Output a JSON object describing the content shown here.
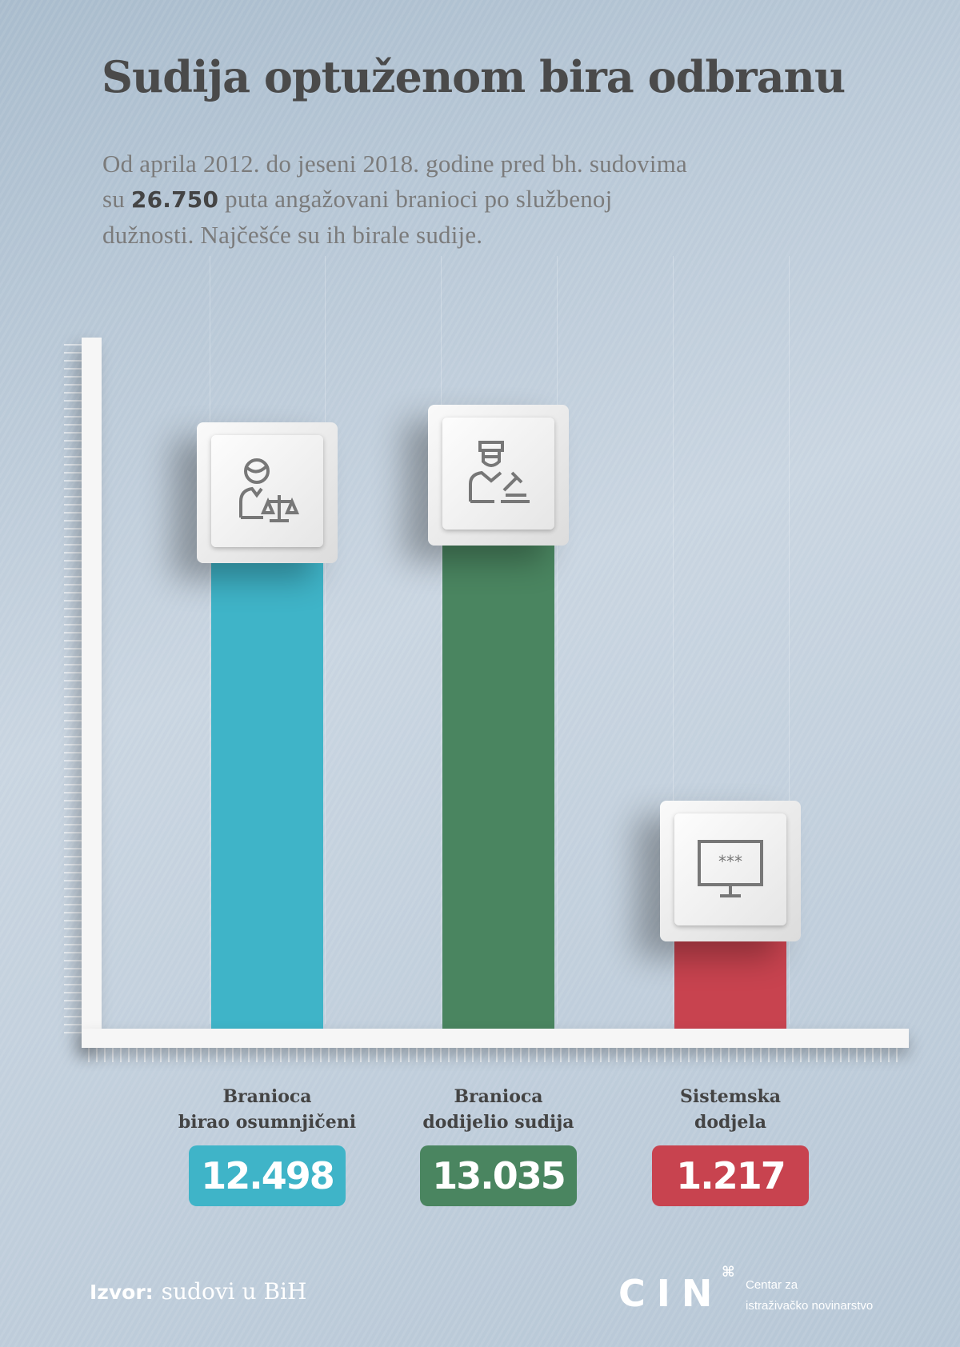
{
  "title": "Sudija optuženom bira odbranu",
  "subtitle": {
    "line1": "Od aprila 2012. do jeseni 2018. godine pred bh. sudovima",
    "pre": "su ",
    "highlight": "26.750",
    "post": " puta angažovani branioci po službenoj",
    "line3": "dužnosti. Najčešće su ih birale sudije."
  },
  "chart_data": {
    "type": "bar",
    "categories": [
      "Branioca birao osumnjičeni",
      "Branioca dodijelio sudija",
      "Sistemska dodjela"
    ],
    "values": [
      12498,
      13035,
      1217
    ],
    "value_labels": [
      "12.498",
      "13.035",
      "1.217"
    ],
    "label_lines": [
      [
        "Branioca",
        "birao osumnjičeni"
      ],
      [
        "Branioca",
        "dodijelio sudija"
      ],
      [
        "Sistemska",
        "dodjela"
      ]
    ],
    "colors": [
      "#3fb4c8",
      "#4a8560",
      "#c8434f"
    ],
    "icons": [
      "lawyer-scales-icon",
      "judge-gavel-icon",
      "computer-password-icon"
    ],
    "title": "",
    "xlabel": "",
    "ylabel": "",
    "grid": false
  },
  "footer": {
    "source_label": "Izvor:",
    "source": "sudovi u BiH",
    "logo": "CIN",
    "org_line1": "Centar za",
    "org_line2": "istraživačko novinarstvo"
  }
}
